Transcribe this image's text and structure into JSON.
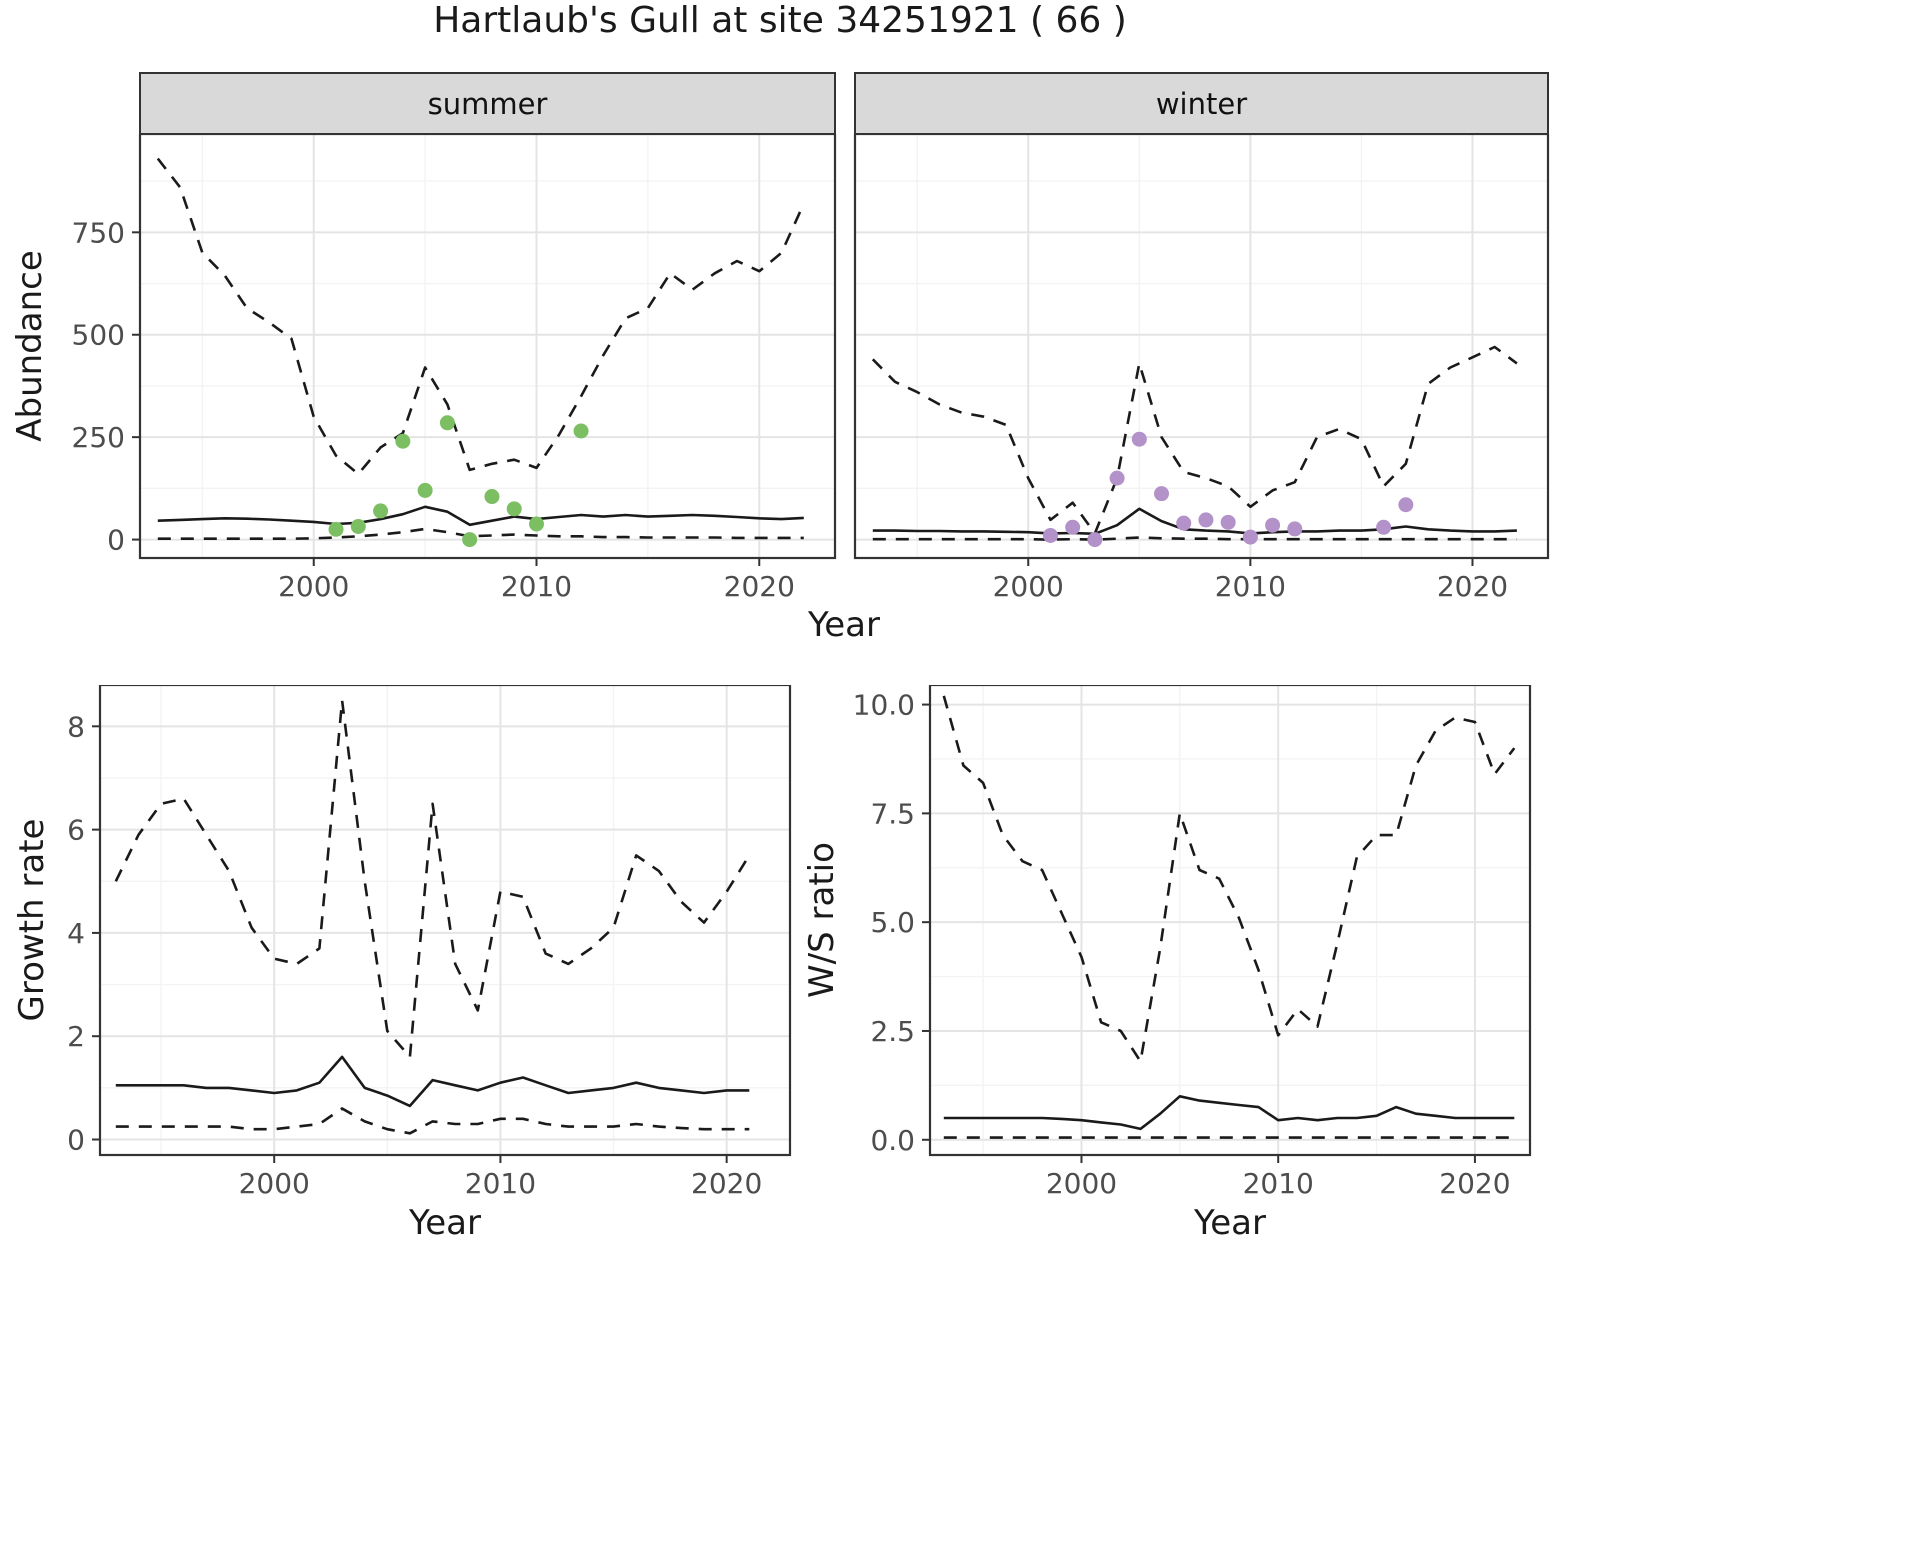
{
  "title": "Hartlaub's Gull at site 34251921 ( 66 )",
  "top_row": {
    "ylabel": "Abundance",
    "xlabel": "Year"
  },
  "colors": {
    "summer_points": "#7CBE62",
    "winter_points": "#B292C8",
    "line": "#1A1A1A",
    "grid_major": "#E4E4E4",
    "grid_minor": "#F3F3F3",
    "strip_bg": "#D9D9D9",
    "panel_border": "#333333",
    "axis_text": "#4D4D4D"
  },
  "chart_data": [
    {
      "id": "abundance_summer",
      "type": "line",
      "facet_label": "summer",
      "xlabel": "Year",
      "ylabel": "Abundance",
      "xlim": [
        1992.2,
        2023.4
      ],
      "ylim": [
        -45,
        990
      ],
      "xticks": [
        2000,
        2010,
        2020
      ],
      "yticks": [
        0,
        250,
        500,
        750
      ],
      "ytick_labels": [
        "0",
        "250",
        "500",
        "750"
      ],
      "x": [
        1993,
        1994,
        1995,
        1996,
        1997,
        1998,
        1999,
        2000,
        2001,
        2002,
        2003,
        2004,
        2005,
        2006,
        2007,
        2008,
        2009,
        2010,
        2011,
        2012,
        2013,
        2014,
        2015,
        2016,
        2017,
        2018,
        2019,
        2020,
        2021,
        2022
      ],
      "series": [
        {
          "name": "upper_95ci",
          "style": "dashed",
          "y": [
            930,
            860,
            700,
            645,
            565,
            530,
            490,
            300,
            205,
            160,
            225,
            260,
            420,
            330,
            170,
            185,
            195,
            175,
            255,
            350,
            450,
            540,
            565,
            650,
            610,
            650,
            680,
            655,
            700,
            820
          ]
        },
        {
          "name": "median",
          "style": "solid",
          "y": [
            46,
            48,
            50,
            52,
            51,
            49,
            46,
            43,
            38,
            41,
            50,
            62,
            80,
            68,
            36,
            46,
            56,
            50,
            55,
            60,
            56,
            60,
            56,
            58,
            60,
            58,
            55,
            52,
            50,
            53
          ]
        },
        {
          "name": "lower_95ci",
          "style": "dashed",
          "y": [
            2,
            2,
            2,
            2,
            2,
            2,
            2,
            3,
            5,
            8,
            12,
            18,
            26,
            18,
            8,
            10,
            12,
            10,
            8,
            8,
            6,
            6,
            5,
            5,
            5,
            5,
            4,
            4,
            4,
            4
          ]
        },
        {
          "name": "observed_counts",
          "style": "points",
          "color": "#7CBE62",
          "x": [
            2001,
            2002,
            2003,
            2004,
            2005,
            2006,
            2007,
            2008,
            2009,
            2010,
            2012
          ],
          "y": [
            25,
            32,
            70,
            240,
            120,
            285,
            0,
            105,
            75,
            38,
            265
          ]
        }
      ]
    },
    {
      "id": "abundance_winter",
      "type": "line",
      "facet_label": "winter",
      "xlabel": "Year",
      "ylabel": "Abundance",
      "xlim": [
        1992.2,
        2023.4
      ],
      "ylim": [
        -45,
        990
      ],
      "xticks": [
        2000,
        2010,
        2020
      ],
      "yticks": [
        0,
        250,
        500,
        750
      ],
      "ytick_labels": [
        "0",
        "250",
        "500",
        "750"
      ],
      "x": [
        1993,
        1994,
        1995,
        1996,
        1997,
        1998,
        1999,
        2000,
        2001,
        2002,
        2003,
        2004,
        2005,
        2006,
        2007,
        2008,
        2009,
        2010,
        2011,
        2012,
        2013,
        2014,
        2015,
        2016,
        2017,
        2018,
        2019,
        2020,
        2021,
        2022
      ],
      "series": [
        {
          "name": "upper_95ci",
          "style": "dashed",
          "y": [
            440,
            385,
            360,
            330,
            310,
            300,
            280,
            150,
            48,
            90,
            15,
            150,
            430,
            250,
            165,
            150,
            130,
            80,
            120,
            140,
            250,
            270,
            245,
            130,
            185,
            380,
            420,
            445,
            470,
            430
          ]
        },
        {
          "name": "median",
          "style": "solid",
          "y": [
            22,
            22,
            21,
            21,
            20,
            20,
            19,
            18,
            15,
            16,
            14,
            35,
            75,
            45,
            25,
            22,
            20,
            15,
            18,
            20,
            20,
            22,
            22,
            25,
            32,
            25,
            22,
            20,
            20,
            22
          ]
        },
        {
          "name": "lower_95ci",
          "style": "dashed",
          "y": [
            1,
            1,
            1,
            1,
            1,
            1,
            1,
            1,
            0,
            1,
            0,
            2,
            5,
            3,
            2,
            2,
            1,
            1,
            1,
            1,
            1,
            1,
            1,
            1,
            1,
            1,
            1,
            1,
            1,
            1
          ]
        },
        {
          "name": "observed_counts",
          "style": "points",
          "color": "#B292C8",
          "x": [
            2001,
            2002,
            2003,
            2004,
            2005,
            2006,
            2007,
            2008,
            2009,
            2010,
            2011,
            2012,
            2016,
            2017
          ],
          "y": [
            10,
            30,
            0,
            150,
            245,
            112,
            40,
            48,
            42,
            6,
            35,
            26,
            30,
            85
          ]
        }
      ]
    },
    {
      "id": "growth_rate",
      "type": "line",
      "facet_label": "",
      "xlabel": "Year",
      "ylabel": "Growth rate",
      "xlim": [
        1992.3,
        2022.8
      ],
      "ylim": [
        -0.3,
        8.8
      ],
      "xticks": [
        2000,
        2010,
        2020
      ],
      "yticks": [
        0,
        2,
        4,
        6,
        8
      ],
      "ytick_labels": [
        "0",
        "2",
        "4",
        "6",
        "8"
      ],
      "x": [
        1993,
        1994,
        1995,
        1996,
        1997,
        1998,
        1999,
        2000,
        2001,
        2002,
        2003,
        2004,
        2005,
        2006,
        2007,
        2008,
        2009,
        2010,
        2011,
        2012,
        2013,
        2014,
        2015,
        2016,
        2017,
        2018,
        2019,
        2020,
        2021
      ],
      "series": [
        {
          "name": "upper_95ci",
          "style": "dashed",
          "y": [
            5.0,
            5.9,
            6.5,
            6.6,
            5.9,
            5.2,
            4.1,
            3.5,
            3.4,
            3.7,
            8.5,
            5.0,
            2.1,
            1.6,
            6.5,
            3.4,
            2.5,
            4.8,
            4.7,
            3.6,
            3.4,
            3.7,
            4.1,
            5.5,
            5.2,
            4.6,
            4.2,
            4.8,
            5.5
          ]
        },
        {
          "name": "median",
          "style": "solid",
          "y": [
            1.05,
            1.05,
            1.05,
            1.05,
            1.0,
            1.0,
            0.95,
            0.9,
            0.95,
            1.1,
            1.6,
            1.0,
            0.85,
            0.65,
            1.15,
            1.05,
            0.95,
            1.1,
            1.2,
            1.05,
            0.9,
            0.95,
            1.0,
            1.1,
            1.0,
            0.95,
            0.9,
            0.95,
            0.95
          ]
        },
        {
          "name": "lower_95ci",
          "style": "dashed",
          "y": [
            0.25,
            0.25,
            0.25,
            0.25,
            0.25,
            0.25,
            0.2,
            0.2,
            0.25,
            0.3,
            0.6,
            0.35,
            0.2,
            0.12,
            0.35,
            0.3,
            0.3,
            0.4,
            0.4,
            0.3,
            0.25,
            0.25,
            0.25,
            0.3,
            0.25,
            0.22,
            0.2,
            0.2,
            0.2
          ]
        }
      ]
    },
    {
      "id": "ws_ratio",
      "type": "line",
      "facet_label": "",
      "xlabel": "Year",
      "ylabel": "W/S ratio",
      "xlim": [
        1992.3,
        2022.8
      ],
      "ylim": [
        -0.35,
        10.45
      ],
      "xticks": [
        2000,
        2010,
        2020
      ],
      "yticks": [
        0,
        2.5,
        5,
        7.5,
        10
      ],
      "ytick_labels": [
        "0.0",
        "2.5",
        "5.0",
        "7.5",
        "10.0"
      ],
      "x": [
        1993,
        1994,
        1995,
        1996,
        1997,
        1998,
        1999,
        2000,
        2001,
        2002,
        2003,
        2004,
        2005,
        2006,
        2007,
        2008,
        2009,
        2010,
        2011,
        2012,
        2013,
        2014,
        2015,
        2016,
        2017,
        2018,
        2019,
        2020,
        2021,
        2022
      ],
      "series": [
        {
          "name": "upper_95ci",
          "style": "dashed",
          "y": [
            10.2,
            8.6,
            8.2,
            7.0,
            6.4,
            6.2,
            5.2,
            4.2,
            2.7,
            2.5,
            1.8,
            4.4,
            7.5,
            6.2,
            6.0,
            5.1,
            3.9,
            2.4,
            3.0,
            2.6,
            4.5,
            6.5,
            7.0,
            7.0,
            8.6,
            9.4,
            9.7,
            9.6,
            8.4,
            9.0
          ]
        },
        {
          "name": "median",
          "style": "solid",
          "y": [
            0.5,
            0.5,
            0.5,
            0.5,
            0.5,
            0.5,
            0.48,
            0.45,
            0.4,
            0.35,
            0.25,
            0.6,
            1.0,
            0.9,
            0.85,
            0.8,
            0.75,
            0.45,
            0.5,
            0.45,
            0.5,
            0.5,
            0.55,
            0.75,
            0.6,
            0.55,
            0.5,
            0.5,
            0.5,
            0.5
          ]
        },
        {
          "name": "lower_95ci",
          "style": "dashed",
          "y": [
            0.05,
            0.05,
            0.05,
            0.05,
            0.05,
            0.05,
            0.05,
            0.05,
            0.05,
            0.05,
            0.05,
            0.05,
            0.05,
            0.05,
            0.05,
            0.05,
            0.05,
            0.05,
            0.05,
            0.05,
            0.05,
            0.05,
            0.05,
            0.05,
            0.05,
            0.05,
            0.05,
            0.05,
            0.05,
            0.05
          ]
        }
      ]
    }
  ]
}
